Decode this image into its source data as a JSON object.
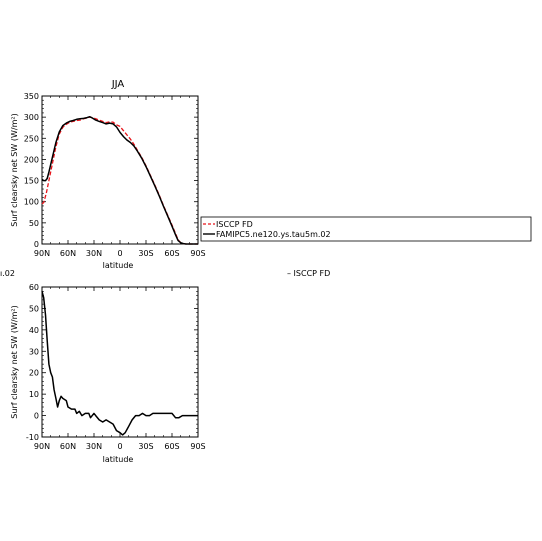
{
  "chart_data": [
    {
      "type": "line",
      "title": "JJA",
      "xlabel": "latitude",
      "ylabel": "Surf clearsky net SW (W/m²)",
      "xlim": [
        90,
        -90
      ],
      "ylim": [
        0,
        350
      ],
      "x_ticks": [
        90,
        60,
        30,
        0,
        -30,
        -60,
        -90
      ],
      "x_tick_labels": [
        "90N",
        "60N",
        "30N",
        "0",
        "30S",
        "60S",
        "90S"
      ],
      "y_ticks": [
        0,
        50,
        100,
        150,
        200,
        250,
        300,
        350
      ],
      "y_tick_labels": [
        "0",
        "50",
        "100",
        "150",
        "200",
        "250",
        "300",
        "350"
      ],
      "series": [
        {
          "name": "ISCCP FD",
          "color": "#e8141a",
          "style": "dashed",
          "points": [
            [
              90,
              95
            ],
            [
              88,
              98
            ],
            [
              85,
              120
            ],
            [
              82,
              150
            ],
            [
              78,
              190
            ],
            [
              74,
              230
            ],
            [
              70,
              260
            ],
            [
              66,
              276
            ],
            [
              62,
              283
            ],
            [
              58,
              288
            ],
            [
              54,
              290
            ],
            [
              50,
              292
            ],
            [
              46,
              293
            ],
            [
              42,
              296
            ],
            [
              38,
              298
            ],
            [
              35,
              300
            ],
            [
              32,
              299
            ],
            [
              28,
              296
            ],
            [
              24,
              293
            ],
            [
              20,
              290
            ],
            [
              16,
              287
            ],
            [
              12,
              289
            ],
            [
              8,
              288
            ],
            [
              4,
              282
            ],
            [
              0,
              278
            ],
            [
              -4,
              268
            ],
            [
              -8,
              258
            ],
            [
              -12,
              248
            ],
            [
              -16,
              236
            ],
            [
              -20,
              222
            ],
            [
              -25,
              205
            ],
            [
              -30,
              185
            ],
            [
              -35,
              163
            ],
            [
              -40,
              140
            ],
            [
              -45,
              117
            ],
            [
              -50,
              92
            ],
            [
              -55,
              68
            ],
            [
              -60,
              45
            ],
            [
              -64,
              25
            ],
            [
              -67,
              10
            ],
            [
              -70,
              3
            ],
            [
              -73,
              1
            ],
            [
              -76,
              0
            ],
            [
              -90,
              0
            ]
          ]
        },
        {
          "name": "FAMIPC5.ne120.ys.tau5m.02",
          "color": "#000000",
          "style": "solid",
          "points": [
            [
              90,
              153
            ],
            [
              88,
              150
            ],
            [
              86,
              150
            ],
            [
              84,
              155
            ],
            [
              82,
              170
            ],
            [
              78,
              205
            ],
            [
              74,
              240
            ],
            [
              70,
              265
            ],
            [
              66,
              280
            ],
            [
              62,
              286
            ],
            [
              58,
              290
            ],
            [
              54,
              292
            ],
            [
              50,
              295
            ],
            [
              46,
              296
            ],
            [
              42,
              297
            ],
            [
              38,
              299
            ],
            [
              35,
              301
            ],
            [
              32,
              298
            ],
            [
              28,
              293
            ],
            [
              24,
              290
            ],
            [
              20,
              287
            ],
            [
              16,
              284
            ],
            [
              12,
              286
            ],
            [
              8,
              284
            ],
            [
              4,
              277
            ],
            [
              0,
              264
            ],
            [
              -4,
              254
            ],
            [
              -8,
              246
            ],
            [
              -12,
              240
            ],
            [
              -16,
              232
            ],
            [
              -20,
              220
            ],
            [
              -25,
              203
            ],
            [
              -30,
              183
            ],
            [
              -35,
              161
            ],
            [
              -40,
              138
            ],
            [
              -45,
              115
            ],
            [
              -50,
              90
            ],
            [
              -55,
              66
            ],
            [
              -60,
              42
            ],
            [
              -64,
              22
            ],
            [
              -67,
              8
            ],
            [
              -70,
              3
            ],
            [
              -73,
              1
            ],
            [
              -76,
              0
            ],
            [
              -90,
              0
            ]
          ]
        }
      ],
      "legend": {
        "placement": "right",
        "entries": [
          "ISCCP FD",
          "FAMIPC5.ne120.ys.tau5m.02"
        ]
      }
    },
    {
      "type": "line",
      "title": "",
      "xlabel": "latitude",
      "ylabel": "Surf clearsky net SW (W/m²)",
      "xlim": [
        90,
        -90
      ],
      "ylim": [
        -10,
        60
      ],
      "x_ticks": [
        90,
        60,
        30,
        0,
        -30,
        -60,
        -90
      ],
      "x_tick_labels": [
        "90N",
        "60N",
        "30N",
        "0",
        "30S",
        "60S",
        "90S"
      ],
      "y_ticks": [
        -10,
        0,
        10,
        20,
        30,
        40,
        50,
        60
      ],
      "y_tick_labels": [
        "-10",
        "0",
        "10",
        "20",
        "30",
        "40",
        "50",
        "60"
      ],
      "series": [
        {
          "color": "#000000",
          "style": "solid",
          "points": [
            [
              90,
              58
            ],
            [
              88,
              55
            ],
            [
              86,
              47
            ],
            [
              84,
              35
            ],
            [
              82,
              24
            ],
            [
              80,
              20
            ],
            [
              78,
              18
            ],
            [
              76,
              12
            ],
            [
              74,
              8
            ],
            [
              72,
              4
            ],
            [
              70,
              7
            ],
            [
              68,
              9
            ],
            [
              66,
              8
            ],
            [
              62,
              7
            ],
            [
              60,
              4
            ],
            [
              56,
              3
            ],
            [
              52,
              3
            ],
            [
              50,
              1
            ],
            [
              47,
              2
            ],
            [
              44,
              0
            ],
            [
              40,
              1
            ],
            [
              36,
              1
            ],
            [
              34,
              -1
            ],
            [
              30,
              1
            ],
            [
              28,
              0
            ],
            [
              24,
              -2
            ],
            [
              20,
              -3
            ],
            [
              16,
              -2
            ],
            [
              12,
              -3
            ],
            [
              8,
              -4
            ],
            [
              4,
              -7
            ],
            [
              0,
              -8
            ],
            [
              -3,
              -9
            ],
            [
              -6,
              -8
            ],
            [
              -10,
              -5
            ],
            [
              -14,
              -2
            ],
            [
              -18,
              0
            ],
            [
              -22,
              0
            ],
            [
              -26,
              1
            ],
            [
              -30,
              0
            ],
            [
              -34,
              0
            ],
            [
              -38,
              1
            ],
            [
              -42,
              1
            ],
            [
              -46,
              1
            ],
            [
              -50,
              1
            ],
            [
              -55,
              1
            ],
            [
              -60,
              1
            ],
            [
              -64,
              -1
            ],
            [
              -68,
              -1
            ],
            [
              -72,
              0
            ],
            [
              -76,
              0
            ],
            [
              -80,
              0
            ],
            [
              -90,
              0
            ]
          ]
        }
      ]
    }
  ],
  "fragments": {
    "left_clipped": "ı.02",
    "right_legend": "– ISCCP FD"
  }
}
